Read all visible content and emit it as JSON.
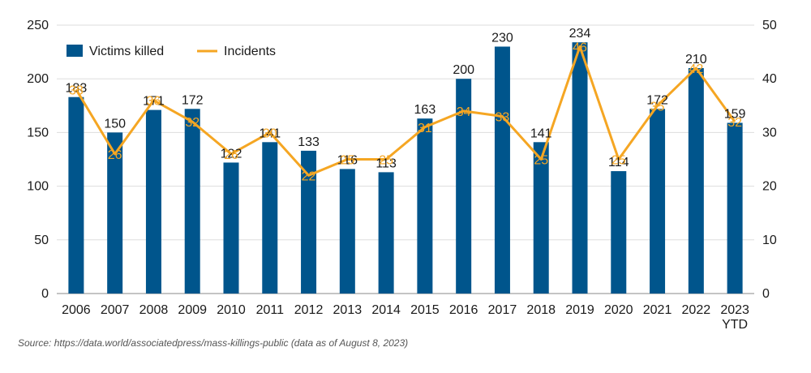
{
  "chart_data": {
    "type": "bar",
    "categories": [
      "2006",
      "2007",
      "2008",
      "2009",
      "2010",
      "2011",
      "2012",
      "2013",
      "2014",
      "2015",
      "2016",
      "2017",
      "2018",
      "2019",
      "2020",
      "2021",
      "2022",
      "2023\nYTD"
    ],
    "series": [
      {
        "name": "Victims killed",
        "type": "bar",
        "axis": "left",
        "color": "#00558c",
        "values": [
          183,
          150,
          171,
          172,
          122,
          141,
          133,
          116,
          113,
          163,
          200,
          230,
          141,
          234,
          114,
          172,
          210,
          159
        ]
      },
      {
        "name": "Incidents",
        "type": "line",
        "axis": "right",
        "color": "#f5a623",
        "values": [
          38,
          26,
          36,
          32,
          26,
          30,
          22,
          25,
          25,
          31,
          34,
          33,
          25,
          46,
          25,
          35,
          42,
          32
        ]
      }
    ],
    "left_ticks": [
      "0",
      "50",
      "100",
      "150",
      "200",
      "250"
    ],
    "right_ticks": [
      "0",
      "10",
      "20",
      "30",
      "40",
      "50"
    ],
    "ylim_left": [
      0,
      250
    ],
    "ylim_right": [
      0,
      50
    ],
    "grid": true,
    "legend_position": "top-left"
  },
  "source_text": "Source: https://data.world/associatedpress/mass-killings-public (data as of August 8, 2023)"
}
